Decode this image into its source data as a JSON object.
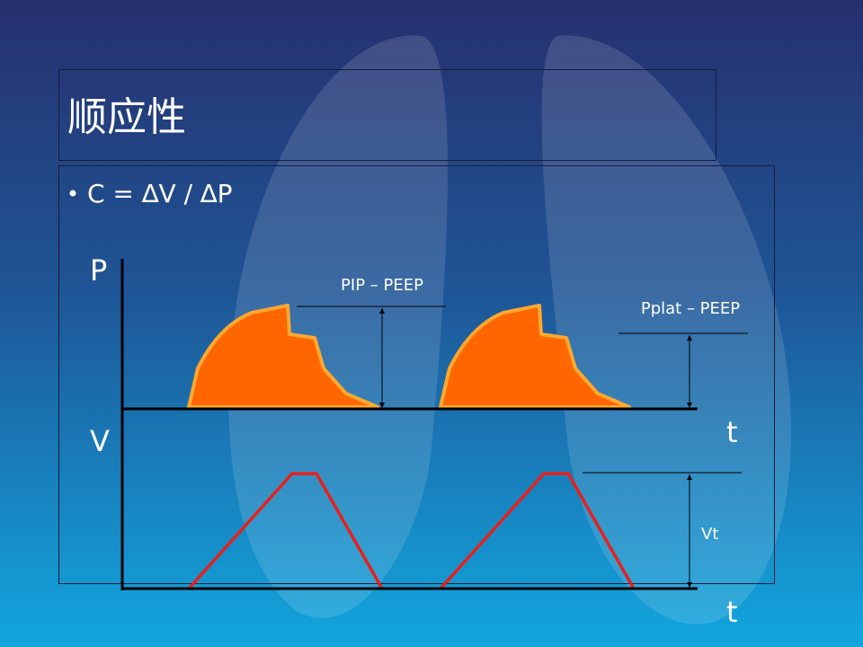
{
  "title": "顺应性",
  "bullet": "C = ∆V / ∆P",
  "labels": {
    "pressure_axis": "P",
    "volume_axis": "V",
    "time_axis_top": "t",
    "time_axis_bottom": "t",
    "pip": "PIP – PEEP",
    "pplat": "Pplat – PEEP",
    "tidal_volume": "Vt"
  }
}
